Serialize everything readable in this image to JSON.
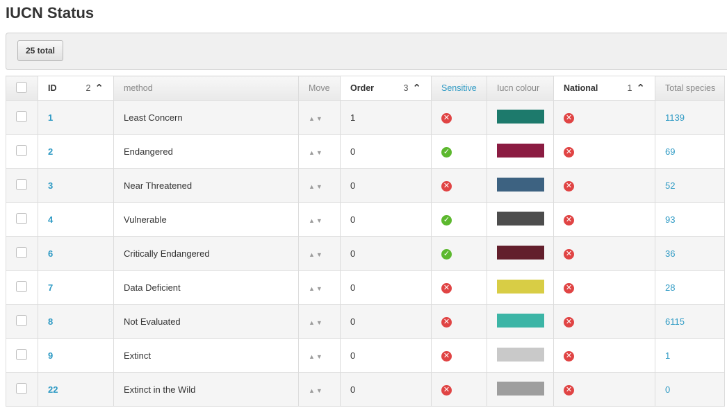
{
  "page": {
    "title": "IUCN Status"
  },
  "toolbar": {
    "total_label": "25 total"
  },
  "columns": {
    "id": "ID",
    "id_sort_rank": "2",
    "method": "method",
    "move": "Move",
    "order": "Order",
    "order_sort_rank": "3",
    "sensitive": "Sensitive",
    "iucn_colour": "Iucn colour",
    "national": "National",
    "national_sort_rank": "1",
    "total_species": "Total species"
  },
  "rows": [
    {
      "id": "1",
      "method": "Least Concern",
      "order": "1",
      "sensitive": false,
      "colour": "#1d7a6c",
      "national": false,
      "total_species": "1139"
    },
    {
      "id": "2",
      "method": "Endangered",
      "order": "0",
      "sensitive": true,
      "colour": "#8b1c42",
      "national": false,
      "total_species": "69"
    },
    {
      "id": "3",
      "method": "Near Threatened",
      "order": "0",
      "sensitive": false,
      "colour": "#3d6281",
      "national": false,
      "total_species": "52"
    },
    {
      "id": "4",
      "method": "Vulnerable",
      "order": "0",
      "sensitive": true,
      "colour": "#4d4d4d",
      "national": false,
      "total_species": "93"
    },
    {
      "id": "6",
      "method": "Critically Endangered",
      "order": "0",
      "sensitive": true,
      "colour": "#631f2c",
      "national": false,
      "total_species": "36"
    },
    {
      "id": "7",
      "method": "Data Deficient",
      "order": "0",
      "sensitive": false,
      "colour": "#d8cd45",
      "national": false,
      "total_species": "28"
    },
    {
      "id": "8",
      "method": "Not Evaluated",
      "order": "0",
      "sensitive": false,
      "colour": "#3cb5a6",
      "national": false,
      "total_species": "6115"
    },
    {
      "id": "9",
      "method": "Extinct",
      "order": "0",
      "sensitive": false,
      "colour": "#c9c9c9",
      "national": false,
      "total_species": "1"
    },
    {
      "id": "22",
      "method": "Extinct in the Wild",
      "order": "0",
      "sensitive": false,
      "colour": "#9e9e9e",
      "national": false,
      "total_species": "0"
    }
  ],
  "icons": {
    "sort_ascending": "chevron-up-icon",
    "move_up": "triangle-up-icon",
    "move_down": "triangle-down-icon",
    "flag_true": "check-circle-icon",
    "flag_false": "x-circle-icon"
  },
  "theme": {
    "link_color": "#2e9ac4",
    "true_color": "#5cb82e",
    "false_color": "#e04444"
  }
}
